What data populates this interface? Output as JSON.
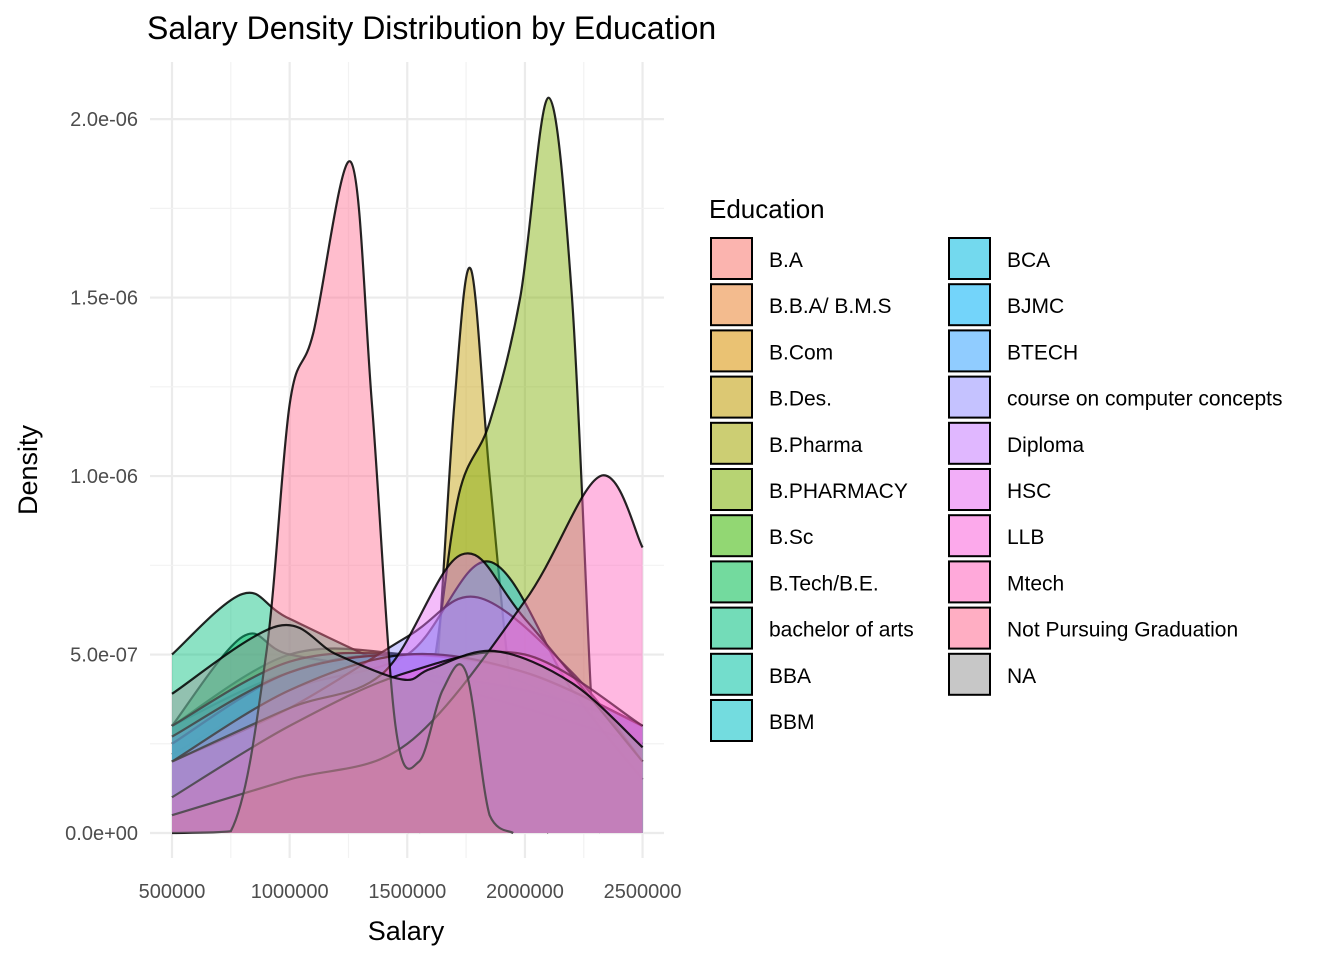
{
  "chart_data": {
    "type": "area",
    "title": "Salary Density Distribution by Education",
    "xlabel": "Salary",
    "ylabel": "Density",
    "xlim": [
      500000,
      2500000
    ],
    "ylim": [
      -7e-08,
      2.16e-06
    ],
    "x_ticks": [
      500000,
      1000000,
      1500000,
      2000000,
      2500000
    ],
    "x_tick_labels": [
      "500000",
      "1000000",
      "1500000",
      "2000000",
      "2500000"
    ],
    "y_ticks": [
      0,
      5e-07,
      1e-06,
      1.5e-06,
      2e-06
    ],
    "y_tick_labels": [
      "0.0e+00",
      "5.0e-07",
      "1.0e-06",
      "1.5e-06",
      "2.0e-06"
    ],
    "grid": true,
    "legend": {
      "title": "Education",
      "placement": "right",
      "columns": 2
    },
    "series": [
      {
        "name": "B.A",
        "color": "#F8766D",
        "x": [
          500000,
          1000000,
          1500000,
          2000000,
          2500000
        ],
        "y": [
          3e-07,
          4.5e-07,
          4.8e-07,
          4.5e-07,
          3e-07
        ]
      },
      {
        "name": "B.B.A/ B.M.S",
        "color": "#EA8331",
        "x": [
          500000,
          1000000,
          1500000,
          2000000,
          2500000
        ],
        "y": [
          2.2e-07,
          4e-07,
          5e-07,
          4.5e-07,
          3e-07
        ]
      },
      {
        "name": "B.Com",
        "color": "#D89000",
        "x": [
          500000,
          1000000,
          1500000,
          2000000,
          2500000
        ],
        "y": [
          2.5e-07,
          4.5e-07,
          5e-07,
          4.2e-07,
          2.5e-07
        ]
      },
      {
        "name": "B.Des.",
        "color": "#C09B00",
        "x": [
          1550000,
          1620000,
          1700000,
          1770000,
          1850000,
          1950000,
          2050000,
          2100000
        ],
        "y": [
          0,
          4e-07,
          1.2e-06,
          1.58e-06,
          1e-06,
          3.5e-07,
          5e-08,
          0
        ]
      },
      {
        "name": "B.Pharma",
        "color": "#A3A500",
        "x": [
          500000,
          1000000,
          1500000,
          2000000,
          2500000
        ],
        "y": [
          2e-07,
          4e-07,
          5e-07,
          4.5e-07,
          3e-07
        ]
      },
      {
        "name": "B.PHARMACY",
        "color": "#7CAE00",
        "x": [
          1500000,
          1620000,
          1720000,
          1850000,
          1980000,
          2100000,
          2200000,
          2280000,
          2320000
        ],
        "y": [
          0,
          5e-07,
          9.5e-07,
          1.15e-06,
          1.5e-06,
          2.06e-06,
          1.5e-06,
          4e-07,
          0
        ]
      },
      {
        "name": "B.Sc",
        "color": "#39B600",
        "x": [
          500000,
          1000000,
          1500000,
          2000000,
          2500000
        ],
        "y": [
          3e-07,
          5e-07,
          5e-07,
          4.5e-07,
          3e-07
        ]
      },
      {
        "name": "B.Tech/B.E.",
        "color": "#00BB4E",
        "x": [
          500000,
          800000,
          1000000,
          1500000,
          2000000,
          2500000
        ],
        "y": [
          3e-07,
          5.5e-07,
          5e-07,
          4.5e-07,
          4e-07,
          3e-07
        ]
      },
      {
        "name": "bachelor of arts",
        "color": "#00BF7D",
        "x": [
          500000,
          800000,
          1000000,
          1500000,
          2000000,
          2500000
        ],
        "y": [
          5e-07,
          6.7e-07,
          6e-07,
          4.5e-07,
          3.5e-07,
          2.5e-07
        ]
      },
      {
        "name": "BBA",
        "color": "#00C1A3",
        "x": [
          500000,
          1000000,
          1500000,
          2000000,
          2500000
        ],
        "y": [
          2.5e-07,
          4.5e-07,
          5e-07,
          4.5e-07,
          3e-07
        ]
      },
      {
        "name": "BBM",
        "color": "#00BFC4",
        "x": [
          500000,
          1000000,
          1500000,
          2000000,
          2500000
        ],
        "y": [
          2.5e-07,
          4.5e-07,
          5e-07,
          4.5e-07,
          3e-07
        ]
      },
      {
        "name": "BCA",
        "color": "#00BAE0",
        "x": [
          500000,
          1000000,
          1500000,
          1850000,
          2200000,
          2500000
        ],
        "y": [
          2e-07,
          4e-07,
          5e-07,
          7.6e-07,
          4e-07,
          1.5e-07
        ]
      },
      {
        "name": "BJMC",
        "color": "#00B0F6",
        "x": [
          500000,
          1000000,
          1500000,
          2000000,
          2500000
        ],
        "y": [
          3e-07,
          4.8e-07,
          5e-07,
          4.5e-07,
          3e-07
        ]
      },
      {
        "name": "BTECH",
        "color": "#35A2FF",
        "x": [
          500000,
          1000000,
          1500000,
          2000000,
          2500000
        ],
        "y": [
          2.7e-07,
          4.5e-07,
          5e-07,
          4.5e-07,
          3e-07
        ]
      },
      {
        "name": "course on computer concepts",
        "color": "#9590FF",
        "x": [
          500000,
          1000000,
          1500000,
          1800000,
          2200000,
          2500000
        ],
        "y": [
          2e-07,
          3.5e-07,
          5.5e-07,
          6.6e-07,
          4.5e-07,
          2e-07
        ]
      },
      {
        "name": "Diploma",
        "color": "#C77CFF",
        "x": [
          500000,
          1000000,
          1500000,
          2000000,
          2500000
        ],
        "y": [
          2e-07,
          4e-07,
          5e-07,
          4.5e-07,
          3e-07
        ]
      },
      {
        "name": "HSC",
        "color": "#E76BF3",
        "x": [
          500000,
          1000000,
          1400000,
          1730000,
          2000000,
          2500000
        ],
        "y": [
          2e-07,
          3.5e-07,
          4.5e-07,
          7.8e-07,
          6e-07,
          2e-07
        ]
      },
      {
        "name": "LLB",
        "color": "#FA62DB",
        "x": [
          500000,
          1000000,
          1500000,
          2000000,
          2500000
        ],
        "y": [
          1e-07,
          3e-07,
          4.5e-07,
          5e-07,
          3e-07
        ]
      },
      {
        "name": "Mtech",
        "color": "#FF62BC",
        "x": [
          500000,
          1000000,
          1500000,
          2000000,
          2320000,
          2500000
        ],
        "y": [
          5e-08,
          1.5e-07,
          2.5e-07,
          6.5e-07,
          1e-06,
          8e-07
        ]
      },
      {
        "name": "Not Pursuing Graduation",
        "color": "#FF6C91",
        "x": [
          500000,
          750000,
          900000,
          1000000,
          1100000,
          1260000,
          1350000,
          1450000,
          1550000,
          1650000,
          1750000,
          1850000,
          1950000
        ],
        "y": [
          0,
          5e-09,
          5e-07,
          1.2e-06,
          1.4e-06,
          1.88e-06,
          1.2e-06,
          3e-07,
          2e-07,
          4e-07,
          4.5e-07,
          5e-08,
          0
        ]
      },
      {
        "name": "NA",
        "color": "#999999",
        "x": [
          500000,
          950000,
          1200000,
          1480000,
          1600000,
          1870000,
          2200000,
          2500000
        ],
        "y": [
          3.9e-07,
          5.8e-07,
          5e-07,
          4.3e-07,
          4.6e-07,
          5.1e-07,
          4.2e-07,
          2.4e-07
        ]
      }
    ]
  }
}
